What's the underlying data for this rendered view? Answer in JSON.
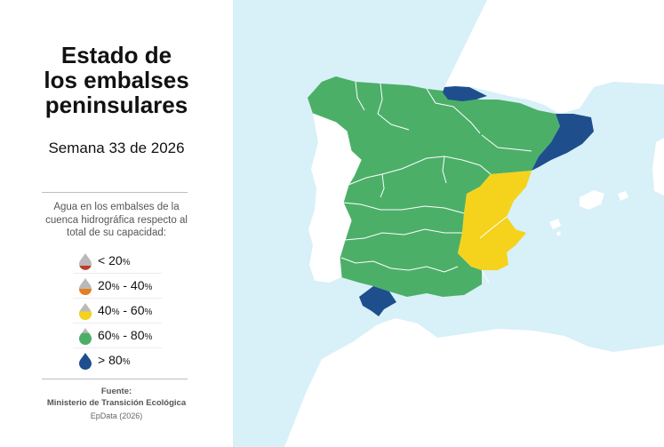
{
  "title": {
    "line1": "Estado de",
    "line2": "los embalses",
    "line3": "peninsulares"
  },
  "subtitle": "Semana 33 de 2026",
  "description": "Agua en los embalses de la cuenca hidrográfica respecto al total de su capacidad:",
  "legend": [
    {
      "label": "< 20",
      "unit": "%",
      "color": "#c0392b",
      "level": 0.2
    },
    {
      "label": "20",
      "unit": "%",
      "label2": " - 40",
      "unit2": "%",
      "color": "#e67e22",
      "level": 0.4
    },
    {
      "label": "40",
      "unit": "%",
      "label2": " - 60",
      "unit2": "%",
      "color": "#f5d31c",
      "level": 0.6
    },
    {
      "label": "60",
      "unit": "%",
      "label2": " - 80",
      "unit2": "%",
      "color": "#4caf68",
      "level": 0.8
    },
    {
      "label": "> 80",
      "unit": "%",
      "color": "#1f4e8c",
      "level": 1.0
    }
  ],
  "source": {
    "label": "Fuente:",
    "name": "Ministerio de Transición Ecológica"
  },
  "credit": "EpData (2026)",
  "map_colors": {
    "sea": "#d8f0f8",
    "land": "#ffffff",
    "green": "#4caf68",
    "yellow": "#f5d31c",
    "blue": "#1f4e8c"
  }
}
